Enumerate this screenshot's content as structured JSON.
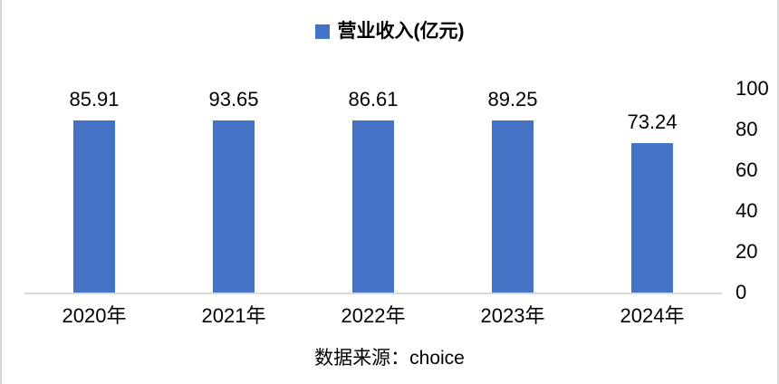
{
  "chart_data": {
    "type": "bar",
    "categories": [
      "2020年",
      "2021年",
      "2022年",
      "2023年",
      "2024年"
    ],
    "values": [
      85.91,
      93.65,
      86.61,
      89.25,
      73.24
    ],
    "value_labels": [
      "85.91",
      "93.65",
      "86.61",
      "89.25",
      "73.24"
    ],
    "title": "",
    "xlabel": "",
    "ylabel": "",
    "ylim": [
      0,
      100
    ],
    "yticks": [
      0,
      20,
      40,
      60,
      80,
      100
    ],
    "y_axis_side": "right",
    "grid": false,
    "legend_position": "top-center",
    "legend_entries": [
      "营业收入(亿元)"
    ],
    "bar_color": "#4472C4",
    "axis_line_color": "#D9D9D9"
  },
  "legend": {
    "label": "营业收入(亿元)"
  },
  "source_note": "数据来源：choice"
}
